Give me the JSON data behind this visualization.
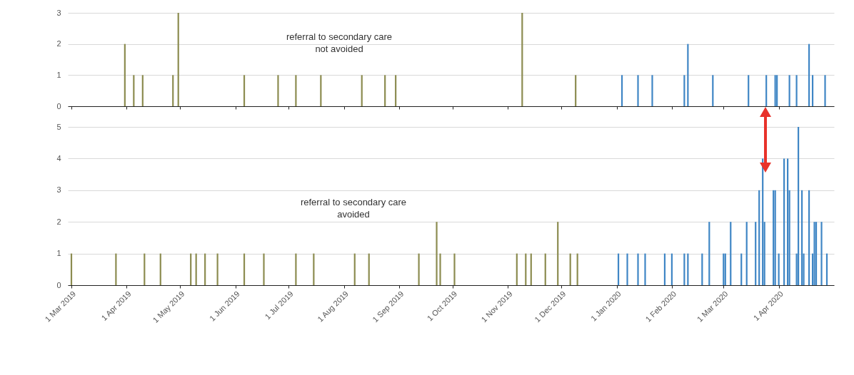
{
  "chart_data": [
    {
      "type": "bar",
      "annotations": [
        "referral to secondary care\nnot avoided"
      ],
      "xlim": [
        "2019-03-01",
        "2020-04-30"
      ],
      "ylim": [
        0,
        3
      ],
      "yticks": [
        0,
        1,
        2,
        3
      ],
      "grid": "y",
      "tick_labels": "y",
      "xticks": [
        {
          "value": "2019-03-01",
          "label": null
        },
        {
          "value": "2019-04-01",
          "label": null
        },
        {
          "value": "2019-05-01",
          "label": null
        },
        {
          "value": "2019-06-01",
          "label": null
        },
        {
          "value": "2019-07-01",
          "label": null
        },
        {
          "value": "2019-08-01",
          "label": null
        },
        {
          "value": "2019-09-01",
          "label": null
        },
        {
          "value": "2019-10-01",
          "label": null
        },
        {
          "value": "2019-11-01",
          "label": null
        },
        {
          "value": "2019-12-01",
          "label": null
        },
        {
          "value": "2020-01-01",
          "label": null
        },
        {
          "value": "2020-02-01",
          "label": null
        },
        {
          "value": "2020-03-01",
          "label": null
        },
        {
          "value": "2020-04-01",
          "label": null
        }
      ],
      "series": [
        {
          "color": "#8c8c50",
          "x": [
            "2019-03-31",
            "2019-04-05",
            "2019-04-10",
            "2019-04-27",
            "2019-04-30",
            "2019-06-06",
            "2019-06-25",
            "2019-07-05",
            "2019-07-19",
            "2019-08-11",
            "2019-08-24",
            "2019-08-30",
            "2019-11-09",
            "2019-12-09"
          ],
          "values": [
            2,
            1,
            1,
            1,
            3,
            1,
            1,
            1,
            1,
            1,
            1,
            1,
            3,
            1
          ]
        },
        {
          "color": "#3f86c5",
          "x": [
            "2020-01-04",
            "2020-01-13",
            "2020-01-21",
            "2020-02-08",
            "2020-02-10",
            "2020-02-24",
            "2020-03-15",
            "2020-03-25",
            "2020-03-30",
            "2020-03-31",
            "2020-04-07",
            "2020-04-11",
            "2020-04-18",
            "2020-04-20",
            "2020-04-27"
          ],
          "values": [
            1,
            1,
            1,
            1,
            2,
            1,
            1,
            1,
            1,
            1,
            1,
            1,
            2,
            1,
            1
          ]
        }
      ]
    },
    {
      "type": "bar",
      "annotations": [
        "referral to secondary care\navoided"
      ],
      "xlim": [
        "2019-03-01",
        "2020-04-30"
      ],
      "ylim": [
        0,
        5
      ],
      "yticks": [
        0,
        1,
        2,
        3,
        4,
        5
      ],
      "grid": "y",
      "xticks": [
        {
          "value": "2019-03-01",
          "label": "1 Mar 2019"
        },
        {
          "value": "2019-04-01",
          "label": "1 Apr 2019"
        },
        {
          "value": "2019-05-01",
          "label": "1 May 2019"
        },
        {
          "value": "2019-06-01",
          "label": "1 Jun 2019"
        },
        {
          "value": "2019-07-01",
          "label": "1 Jul 2019"
        },
        {
          "value": "2019-08-01",
          "label": "1 Aug 2019"
        },
        {
          "value": "2019-09-01",
          "label": "1 Sep 2019"
        },
        {
          "value": "2019-10-01",
          "label": "1 Oct 2019"
        },
        {
          "value": "2019-11-01",
          "label": "1 Nov 2019"
        },
        {
          "value": "2019-12-01",
          "label": "1 Dec 2019"
        },
        {
          "value": "2020-01-01",
          "label": "1 Jan 2020"
        },
        {
          "value": "2020-02-01",
          "label": "1 Feb 2020"
        },
        {
          "value": "2020-03-01",
          "label": "1 Mar 2020"
        },
        {
          "value": "2020-04-01",
          "label": "1 Apr 2020"
        }
      ],
      "series": [
        {
          "color": "#8c8c50",
          "x": [
            "2019-03-01",
            "2019-03-26",
            "2019-04-11",
            "2019-04-20",
            "2019-05-07",
            "2019-05-10",
            "2019-05-15",
            "2019-05-22",
            "2019-06-06",
            "2019-06-17",
            "2019-07-05",
            "2019-07-15",
            "2019-08-07",
            "2019-08-15",
            "2019-09-12",
            "2019-09-22",
            "2019-09-24",
            "2019-10-02",
            "2019-11-06",
            "2019-11-11",
            "2019-11-14",
            "2019-11-22",
            "2019-11-29",
            "2019-12-06",
            "2019-12-10"
          ],
          "values": [
            1,
            1,
            1,
            1,
            1,
            1,
            1,
            1,
            1,
            1,
            1,
            1,
            1,
            1,
            1,
            2,
            1,
            1,
            1,
            1,
            1,
            1,
            2,
            1,
            1
          ]
        },
        {
          "color": "#3f86c5",
          "x": [
            "2020-01-02",
            "2020-01-07",
            "2020-01-13",
            "2020-01-17",
            "2020-01-28",
            "2020-02-01",
            "2020-02-08",
            "2020-02-10",
            "2020-02-18",
            "2020-02-22",
            "2020-03-01",
            "2020-03-02",
            "2020-03-05",
            "2020-03-11",
            "2020-03-14",
            "2020-03-19",
            "2020-03-21",
            "2020-03-23",
            "2020-03-24",
            "2020-03-29",
            "2020-03-30",
            "2020-04-01",
            "2020-04-04",
            "2020-04-06",
            "2020-04-07",
            "2020-04-11",
            "2020-04-12",
            "2020-04-14",
            "2020-04-15",
            "2020-04-18",
            "2020-04-20",
            "2020-04-21",
            "2020-04-22",
            "2020-04-25",
            "2020-04-28"
          ],
          "values": [
            1,
            1,
            1,
            1,
            1,
            1,
            1,
            1,
            1,
            2,
            1,
            1,
            2,
            1,
            2,
            2,
            3,
            4,
            2,
            3,
            3,
            1,
            4,
            4,
            3,
            1,
            5,
            3,
            1,
            3,
            1,
            2,
            2,
            2,
            1
          ]
        }
      ]
    }
  ]
}
